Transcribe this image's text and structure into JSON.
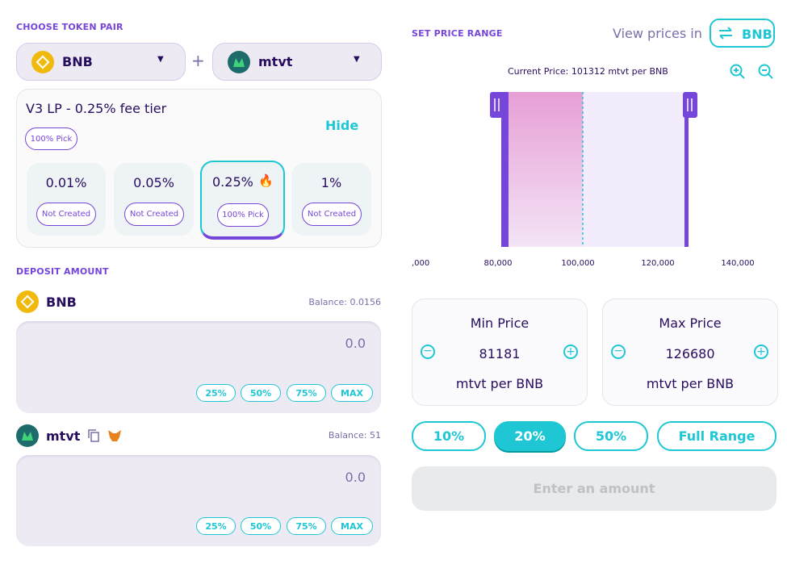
{
  "token_pair": {
    "heading": "CHOOSE TOKEN PAIR",
    "token_a": "BNB",
    "plus": "+",
    "token_b": "mtvt"
  },
  "fee_tier": {
    "title": "V3 LP - 0.25% fee tier",
    "pick_badge": "100% Pick",
    "toggle": "Hide",
    "options": [
      {
        "fee": "0.01%",
        "status": "Not Created"
      },
      {
        "fee": "0.05%",
        "status": "Not Created"
      },
      {
        "fee": "0.25%",
        "status": "100% Pick"
      },
      {
        "fee": "1%",
        "status": "Not Created"
      }
    ]
  },
  "deposit": {
    "heading": "DEPOSIT AMOUNT",
    "inputs": [
      {
        "token": "BNB",
        "balance": "Balance: 0.0156",
        "amount": "0.0",
        "presets": [
          "25%",
          "50%",
          "75%",
          "MAX"
        ]
      },
      {
        "token": "mtvt",
        "balance": "Balance: 51",
        "amount": "0.0",
        "presets": [
          "25%",
          "50%",
          "75%",
          "MAX"
        ]
      }
    ]
  },
  "price_range": {
    "heading": "SET PRICE RANGE",
    "view_prices_label": "View prices in",
    "view_prices_token": "BNB",
    "current_price": "Current Price: 101312 mtvt per BNB",
    "axis_labels": [
      ",000",
      "80,000",
      "100,000",
      "120,000",
      "140,000"
    ],
    "min": {
      "label": "Min Price",
      "value": "81181",
      "unit": "mtvt per BNB"
    },
    "max": {
      "label": "Max Price",
      "value": "126680",
      "unit": "mtvt per BNB"
    },
    "presets": [
      "10%",
      "20%",
      "50%",
      "Full Range"
    ],
    "submit": "Enter an amount"
  }
}
